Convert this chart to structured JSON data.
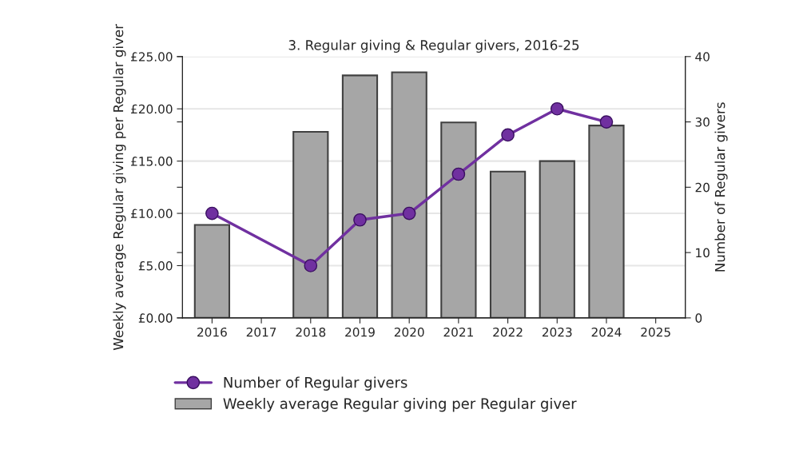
{
  "chart_data": {
    "type": "bar",
    "title": "3. Regular giving & Regular givers, 2016-25",
    "categories": [
      "2016",
      "2017",
      "2018",
      "2019",
      "2020",
      "2021",
      "2022",
      "2023",
      "2024",
      "2025"
    ],
    "series": [
      {
        "name": "Weekly average Regular giving per Regular giver",
        "color": "#a6a6a6",
        "values": [
          8.9,
          null,
          17.8,
          23.2,
          23.5,
          18.7,
          14.0,
          15.0,
          18.4,
          null
        ]
      },
      {
        "name": "Number of Regular givers",
        "type": "line",
        "axis": "y2",
        "color": "#7030a0",
        "marker": "circle",
        "values": [
          16,
          null,
          8,
          15,
          16,
          22,
          28,
          32,
          30,
          null
        ]
      }
    ],
    "ylabel": "Weekly average Regular giving per Regular giver",
    "y2label": "Number of Regular givers",
    "ylim": [
      0,
      25
    ],
    "yticks": [
      {
        "value": 0,
        "label": "£0.00"
      },
      {
        "value": 5,
        "label": "£5.00"
      },
      {
        "value": 10,
        "label": "£10.00"
      },
      {
        "value": 15,
        "label": "£15.00"
      },
      {
        "value": 20,
        "label": "£20.00"
      },
      {
        "value": 25,
        "label": "£25.00"
      }
    ],
    "y2lim": [
      0,
      40
    ],
    "y2ticks": [
      0,
      10,
      20,
      30,
      40
    ],
    "grid": "y",
    "legend": "bottom"
  }
}
